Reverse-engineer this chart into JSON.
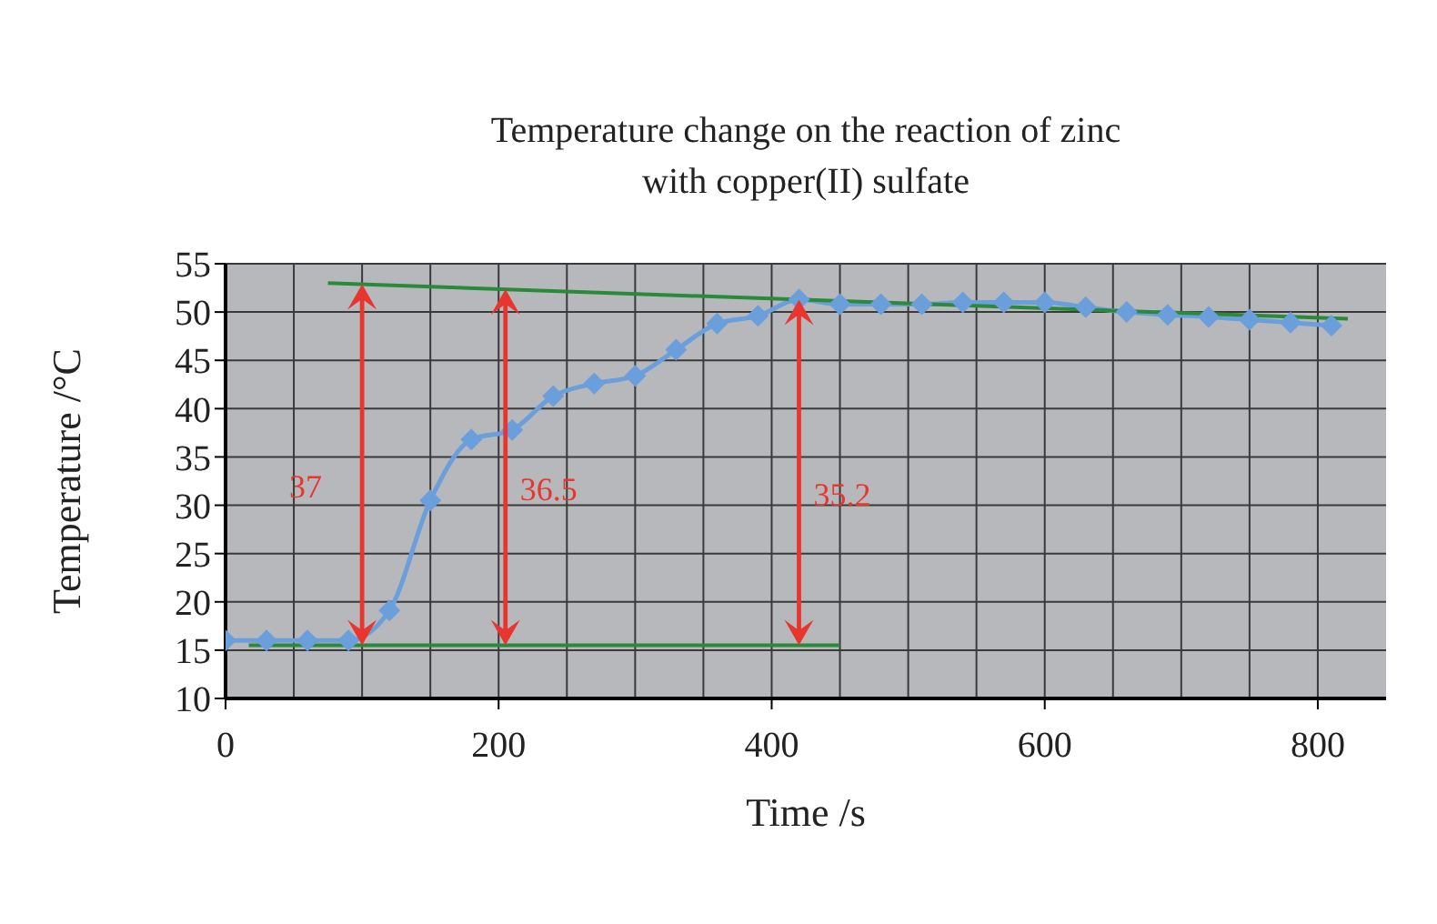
{
  "chart_data": {
    "type": "line",
    "title": "Temperature change on the reaction of zinc with copper(II) sulfate",
    "xlabel": "Time /s",
    "ylabel": "Temperature /°C",
    "xlim": [
      0,
      850
    ],
    "xticks": [
      0,
      {
        "value": 50,
        "label": null
      },
      {
        "value": 100,
        "label": null
      },
      {
        "value": 150,
        "label": null
      },
      200,
      {
        "value": 250,
        "label": null
      },
      {
        "value": 300,
        "label": null
      },
      {
        "value": 350,
        "label": null
      },
      400,
      {
        "value": 450,
        "label": null
      },
      {
        "value": 500,
        "label": null
      },
      {
        "value": 550,
        "label": null
      },
      600,
      {
        "value": 650,
        "label": null
      },
      {
        "value": 700,
        "label": null
      },
      {
        "value": 750,
        "label": null
      },
      800
    ],
    "ylim": [
      10,
      55
    ],
    "yticks": [
      10,
      15,
      20,
      25,
      30,
      35,
      40,
      45,
      50,
      55
    ],
    "grid": true,
    "line_style": "solid",
    "series": [
      {
        "color": "#6a9fdc",
        "marker": "diamond",
        "x": [
          0,
          30,
          60,
          90,
          120,
          150,
          180,
          210,
          240,
          270,
          300,
          330,
          360,
          390,
          420,
          450,
          480,
          510,
          540,
          570,
          600,
          630,
          660,
          690,
          720,
          750,
          780,
          810
        ],
        "values": [
          16,
          16,
          16,
          16,
          19.1,
          30.5,
          36.8,
          37.8,
          41.3,
          42.6,
          43.4,
          46.1,
          48.8,
          49.6,
          51.3,
          50.8,
          50.8,
          50.8,
          51,
          51,
          51,
          50.5,
          50,
          49.7,
          49.5,
          49.2,
          48.9,
          48.6
        ]
      },
      {
        "color": "#2a8a3a",
        "marker": "none",
        "x": [
          17,
          450
        ],
        "values": [
          15.5,
          15.5
        ]
      },
      {
        "color": "#2a8a3a",
        "marker": "none",
        "x": [
          75,
          822
        ],
        "values": [
          53,
          49.3
        ]
      }
    ],
    "annotations": [
      "37",
      "36.5",
      "35.2"
    ]
  }
}
